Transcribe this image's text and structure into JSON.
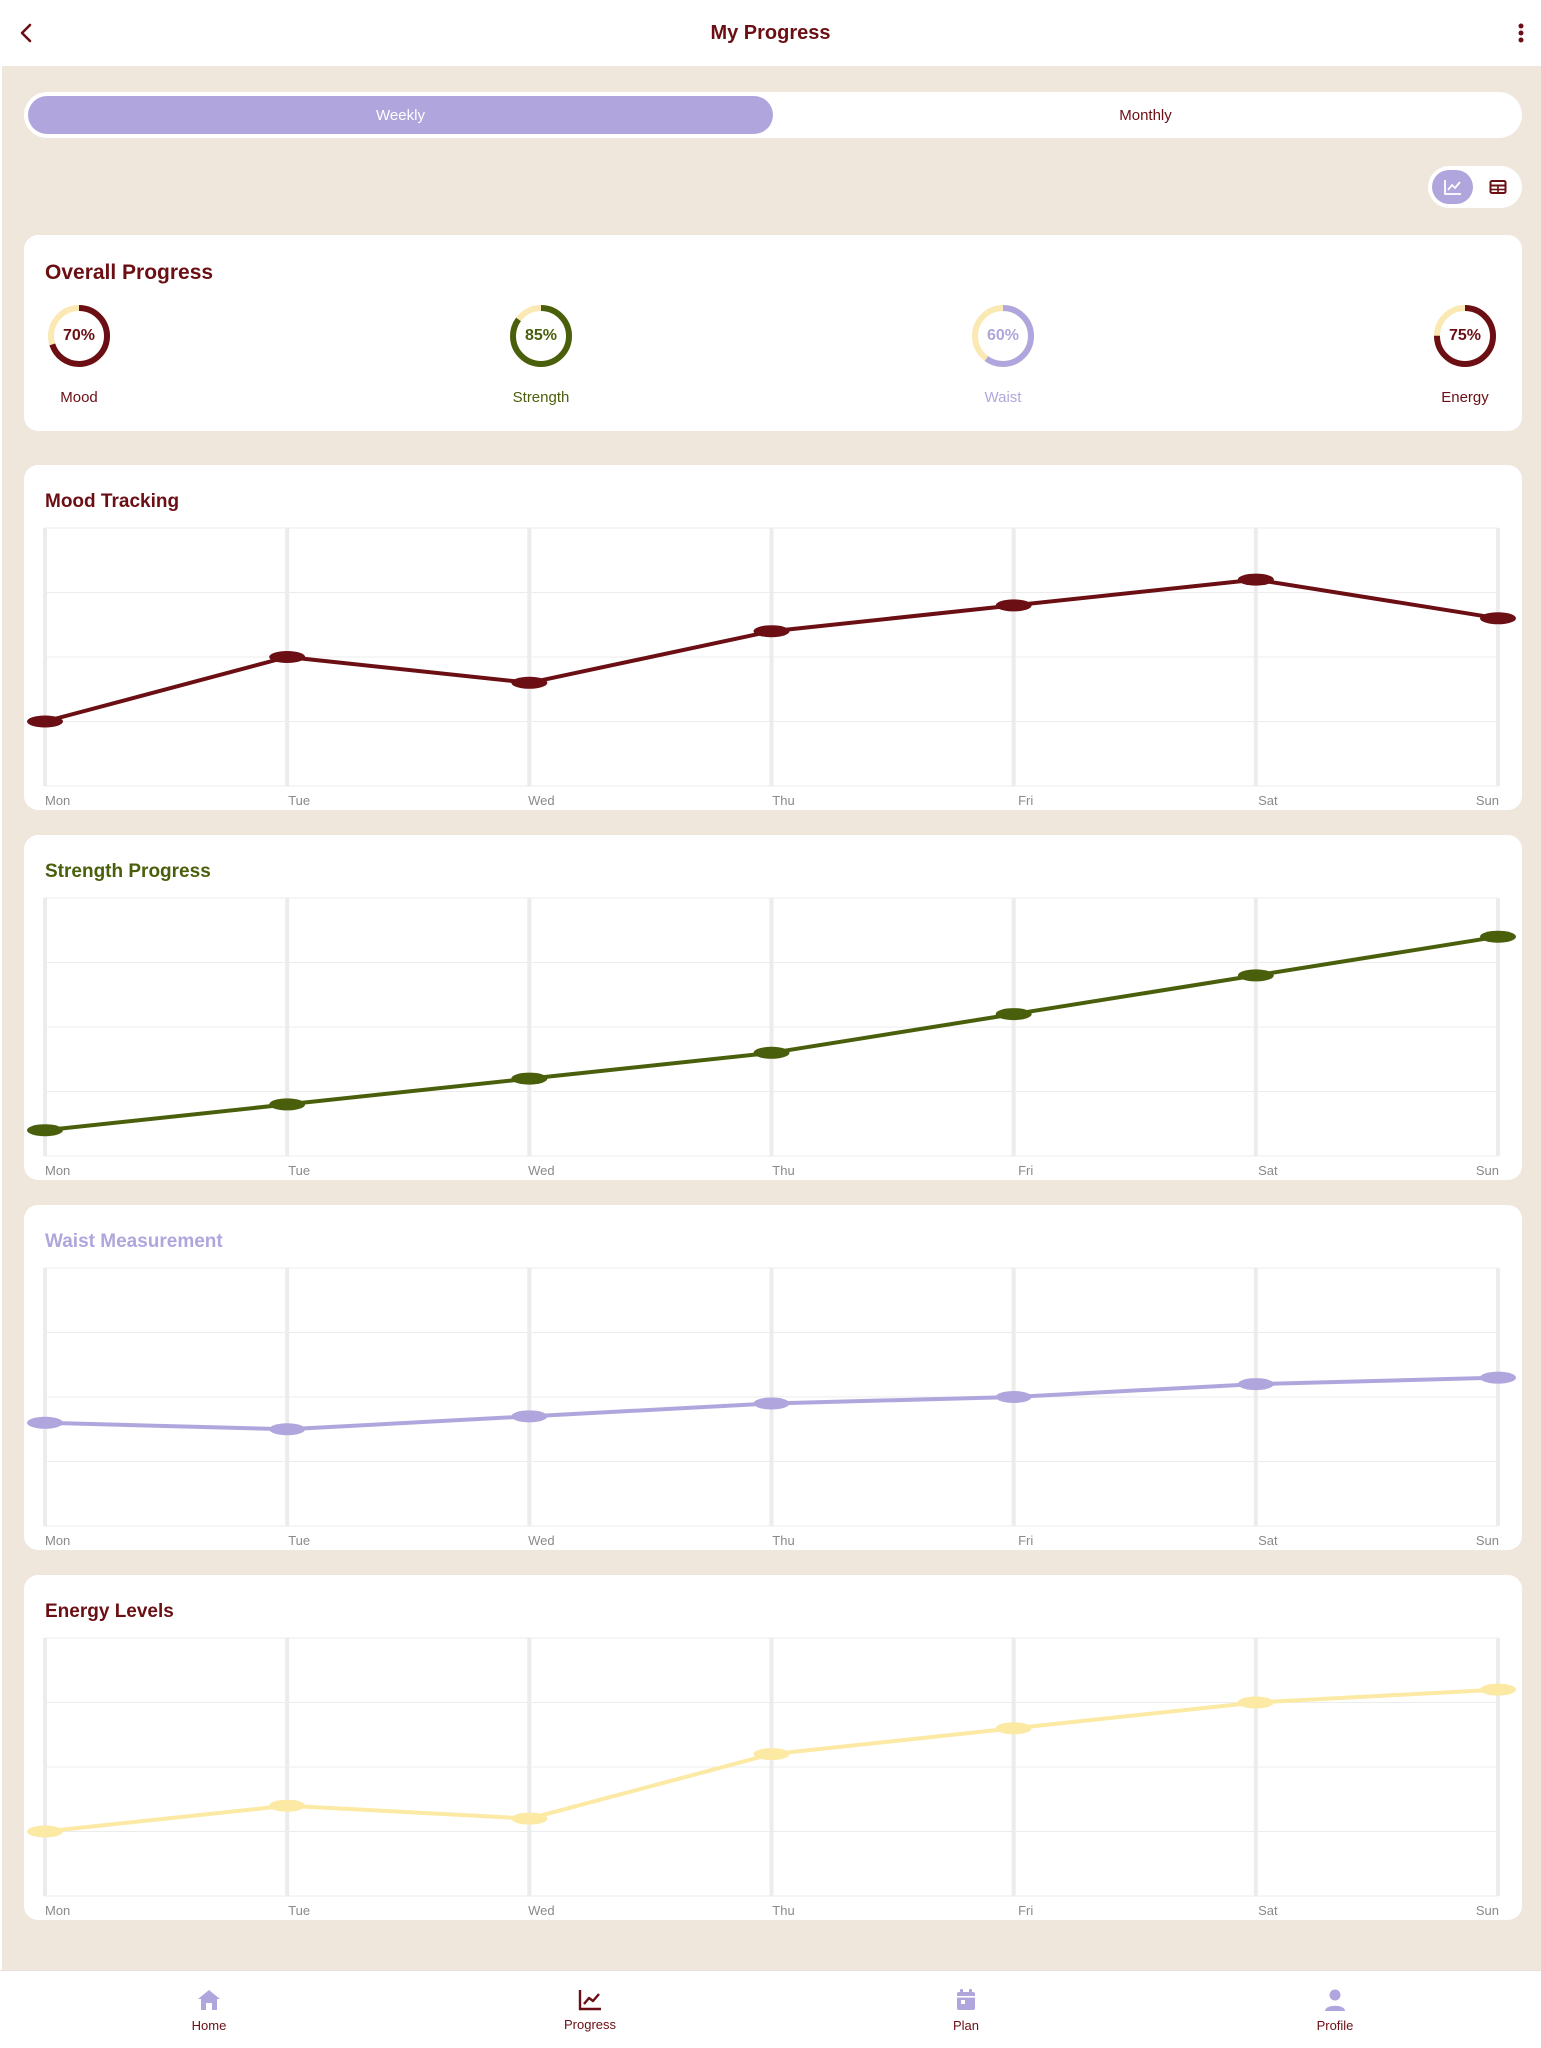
{
  "header": {
    "title": "My Progress",
    "back_icon": "chevron-left-icon",
    "menu_icon": "more-vertical-icon"
  },
  "period_tabs": [
    {
      "label": "Weekly",
      "active": true
    },
    {
      "label": "Monthly",
      "active": false
    }
  ],
  "view_toggle": [
    {
      "icon": "line-chart-icon",
      "active": true
    },
    {
      "icon": "table-icon",
      "active": false
    }
  ],
  "overall": {
    "title": "Overall Progress",
    "rings": [
      {
        "label": "Mood",
        "percent_text": "70%",
        "value": 0.7,
        "color": "#6b0f14",
        "track": "#fbe9b4"
      },
      {
        "label": "Strength",
        "percent_text": "85%",
        "value": 0.85,
        "color": "#4a5f0c",
        "track": "#fbe9b4"
      },
      {
        "label": "Waist",
        "percent_text": "60%",
        "value": 0.6,
        "color": "#b0a6dd",
        "track": "#fbe9b4"
      },
      {
        "label": "Energy",
        "percent_text": "75%",
        "value": 0.75,
        "color": "#6b0f14",
        "track": "#fbe9b4"
      }
    ]
  },
  "charts": [
    {
      "key": "mood",
      "title": "Mood Tracking",
      "title_color": "#6b0f14",
      "line_color": "#6b0f14"
    },
    {
      "key": "strength",
      "title": "Strength Progress",
      "title_color": "#4a5f0c",
      "line_color": "#4a5f0c"
    },
    {
      "key": "waist",
      "title": "Waist Measurement",
      "title_color": "#b0a6dd",
      "line_color": "#b0a6dd"
    },
    {
      "key": "energy",
      "title": "Energy Levels",
      "title_color": "#6b0f14",
      "line_color": "#fbe9a4"
    }
  ],
  "chart_data": [
    {
      "type": "line",
      "title": "Mood Tracking",
      "categories": [
        "Mon",
        "Tue",
        "Wed",
        "Thu",
        "Fri",
        "Sat",
        "Sun"
      ],
      "values": [
        1.0,
        2.0,
        1.6,
        2.4,
        2.8,
        3.2,
        2.6
      ],
      "ylim": [
        0,
        4
      ],
      "grid": true
    },
    {
      "type": "line",
      "title": "Strength Progress",
      "categories": [
        "Mon",
        "Tue",
        "Wed",
        "Thu",
        "Fri",
        "Sat",
        "Sun"
      ],
      "values": [
        0.4,
        0.8,
        1.2,
        1.6,
        2.2,
        2.8,
        3.4
      ],
      "ylim": [
        0,
        4
      ],
      "grid": true
    },
    {
      "type": "line",
      "title": "Waist Measurement",
      "categories": [
        "Mon",
        "Tue",
        "Wed",
        "Thu",
        "Fri",
        "Sat",
        "Sun"
      ],
      "values": [
        1.6,
        1.5,
        1.7,
        1.9,
        2.0,
        2.2,
        2.3
      ],
      "ylim": [
        0,
        4
      ],
      "grid": true
    },
    {
      "type": "line",
      "title": "Energy Levels",
      "categories": [
        "Mon",
        "Tue",
        "Wed",
        "Thu",
        "Fri",
        "Sat",
        "Sun"
      ],
      "values": [
        1.0,
        1.4,
        1.2,
        2.2,
        2.6,
        3.0,
        3.2
      ],
      "ylim": [
        0,
        4
      ],
      "grid": true
    }
  ],
  "bottom_nav": [
    {
      "label": "Home",
      "icon": "home-icon"
    },
    {
      "label": "Progress",
      "icon": "trending-chart-icon",
      "active": true
    },
    {
      "label": "Plan",
      "icon": "calendar-icon"
    },
    {
      "label": "Profile",
      "icon": "person-icon"
    }
  ],
  "colors": {
    "accent": "#b0a6dd",
    "brand": "#6b0f14",
    "background": "#efe6dc"
  }
}
